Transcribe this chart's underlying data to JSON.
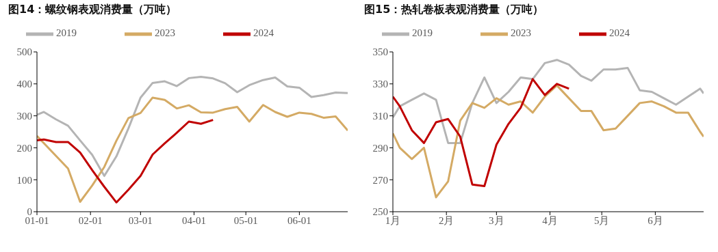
{
  "chart_data": [
    {
      "type": "line",
      "title": "图14：螺纹钢表观消费量（万吨）",
      "xlim": [
        "--01-01",
        "--06-29"
      ],
      "xticks": [
        {
          "value": "--01-01",
          "label": "01-01"
        },
        {
          "value": "--02-01",
          "label": "02-01"
        },
        {
          "value": "--03-01",
          "label": "03-01"
        },
        {
          "value": "--04-01",
          "label": "04-01"
        },
        {
          "value": "--05-01",
          "label": "05-01"
        },
        {
          "value": "--06-01",
          "label": "06-01"
        }
      ],
      "ylim": [
        0,
        500
      ],
      "yticks": [
        0,
        100,
        200,
        300,
        400,
        500
      ],
      "legend": "top",
      "marker": "none",
      "line_style": "solid",
      "series": [
        {
          "name": "2019",
          "color": "#b4b4b4",
          "x": [
            "--01-01",
            "--01-05",
            "--01-12",
            "--01-19",
            "--01-26",
            "--02-02",
            "--02-09",
            "--02-16",
            "--02-23",
            "--03-01",
            "--03-08",
            "--03-15",
            "--03-22",
            "--03-29",
            "--04-05",
            "--04-12",
            "--04-19",
            "--04-26",
            "--05-03",
            "--05-11",
            "--05-18",
            "--05-25",
            "--06-01",
            "--06-08",
            "--06-15",
            "--06-22",
            "--06-29"
          ],
          "values": [
            303,
            312,
            289,
            269,
            223,
            178,
            112,
            173,
            261,
            357,
            403,
            408,
            393,
            418,
            422,
            417,
            402,
            374,
            396,
            412,
            420,
            392,
            388,
            359,
            365,
            373,
            371
          ]
        },
        {
          "name": "2023",
          "color": "#d4aa64",
          "x": [
            "--01-01",
            "--01-19",
            "--01-26",
            "--02-02",
            "--02-09",
            "--02-16",
            "--02-23",
            "--03-01",
            "--03-08",
            "--03-15",
            "--03-22",
            "--03-29",
            "--04-05",
            "--04-12",
            "--04-19",
            "--04-26",
            "--05-03",
            "--05-11",
            "--05-18",
            "--05-25",
            "--06-01",
            "--06-08",
            "--06-15",
            "--06-22",
            "--06-29"
          ],
          "values": [
            237,
            135,
            31,
            82,
            140,
            222,
            293,
            309,
            357,
            350,
            323,
            333,
            311,
            310,
            321,
            328,
            282,
            334,
            312,
            297,
            310,
            306,
            294,
            298,
            254
          ]
        },
        {
          "name": "2024",
          "color": "#c00000",
          "x": [
            "--01-01",
            "--01-05",
            "--01-12",
            "--01-19",
            "--01-26",
            "--02-02",
            "--02-09",
            "--02-16",
            "--02-23",
            "--03-01",
            "--03-08",
            "--03-15",
            "--03-22",
            "--03-29",
            "--04-05",
            "--04-12"
          ],
          "values": [
            223,
            226,
            218,
            218,
            185,
            130,
            78,
            29,
            69,
            112,
            179,
            214,
            247,
            282,
            275,
            287
          ]
        }
      ]
    },
    {
      "type": "line",
      "title": "图15：热轧卷板表观消费量（万吨）",
      "xlim": [
        "--01-01",
        "--06-29"
      ],
      "xticks": [
        {
          "value": "--01-01",
          "label": "1月"
        },
        {
          "value": "--02-01",
          "label": "2月"
        },
        {
          "value": "--03-01",
          "label": "3月"
        },
        {
          "value": "--04-01",
          "label": "4月"
        },
        {
          "value": "--05-01",
          "label": "5月"
        },
        {
          "value": "--06-01",
          "label": "6月"
        }
      ],
      "ylim": [
        250,
        350
      ],
      "yticks": [
        250,
        270,
        290,
        310,
        330,
        350
      ],
      "legend": "top",
      "marker": "none",
      "line_style": "solid",
      "series": [
        {
          "name": "2019",
          "color": "#b4b4b4",
          "x": [
            "--01-01",
            "--01-05",
            "--01-12",
            "--01-19",
            "--01-26",
            "--02-02",
            "--02-09",
            "--02-16",
            "--02-23",
            "--03-01",
            "--03-08",
            "--03-15",
            "--03-22",
            "--03-29",
            "--04-05",
            "--04-12",
            "--04-19",
            "--04-25",
            "--05-02",
            "--05-09",
            "--05-16",
            "--05-23",
            "--05-30",
            "--06-06",
            "--06-13",
            "--06-20",
            "--06-27",
            "--06-29"
          ],
          "values": [
            309,
            316,
            320,
            324,
            320,
            293,
            293,
            318,
            334,
            318,
            325,
            334,
            333,
            343,
            345,
            342,
            335,
            332,
            339,
            339,
            340,
            326,
            325,
            321,
            317,
            322,
            327,
            324
          ]
        },
        {
          "name": "2023",
          "color": "#d4aa64",
          "x": [
            "--01-01",
            "--01-05",
            "--01-12",
            "--01-19",
            "--01-26",
            "--02-02",
            "--02-09",
            "--02-16",
            "--02-23",
            "--03-01",
            "--03-08",
            "--03-15",
            "--03-22",
            "--03-29",
            "--04-05",
            "--04-12",
            "--04-19",
            "--04-25",
            "--05-02",
            "--05-09",
            "--05-16",
            "--05-23",
            "--05-30",
            "--06-06",
            "--06-13",
            "--06-20",
            "--06-27",
            "--06-29"
          ],
          "values": [
            299,
            290,
            283,
            290,
            259,
            269,
            307,
            318,
            315,
            321,
            317,
            319,
            312,
            322,
            329,
            321,
            313,
            313,
            301,
            302,
            310,
            318,
            319,
            316,
            312,
            312,
            300,
            297
          ]
        },
        {
          "name": "2024",
          "color": "#c00000",
          "x": [
            "--01-01",
            "--01-05",
            "--01-12",
            "--01-19",
            "--01-26",
            "--02-02",
            "--02-09",
            "--02-16",
            "--02-23",
            "--03-01",
            "--03-08",
            "--03-15",
            "--03-22",
            "--03-29",
            "--04-05",
            "--04-12"
          ],
          "values": [
            322,
            316,
            301,
            293,
            306,
            308,
            297,
            267,
            266,
            292,
            305,
            315,
            333,
            323,
            330,
            327
          ]
        }
      ]
    }
  ]
}
